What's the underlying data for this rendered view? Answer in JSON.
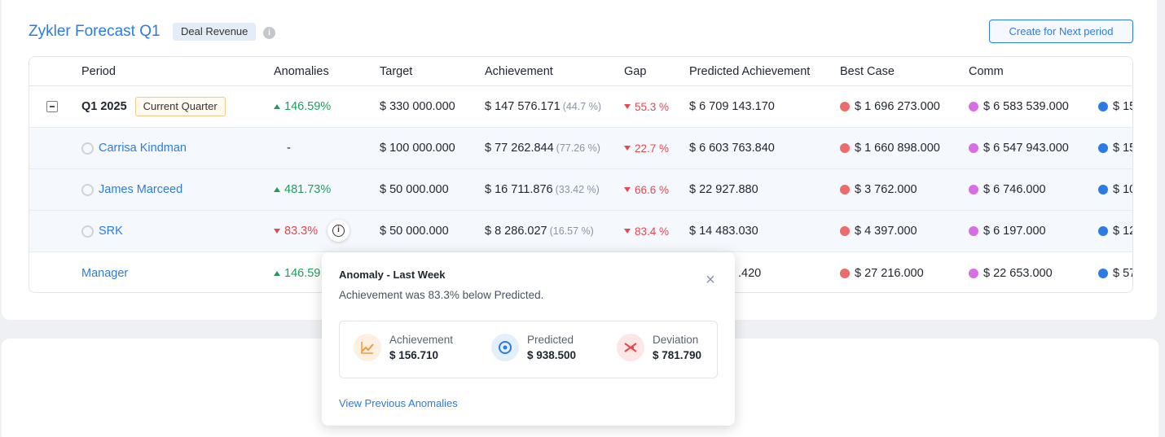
{
  "header": {
    "title": "Zykler Forecast Q1",
    "badge": "Deal Revenue",
    "info_icon": "i",
    "create_button": "Create for Next period"
  },
  "table": {
    "columns": [
      "Period",
      "Anomalies",
      "Target",
      "Achievement",
      "Gap",
      "Predicted Achievement",
      "Best Case",
      "Comm"
    ],
    "rows": [
      {
        "period": "Q1 2025",
        "tag": "Current Quarter",
        "anomaly": "146.59%",
        "anomaly_dir": "up",
        "target": "$ 330 000.000",
        "achievement": "$ 147 576.171",
        "achievement_pct": "(44.7 %)",
        "gap": "55.3 %",
        "predicted": "$ 6 709 143.170",
        "best_case": "$ 1 696 273.000",
        "commit": "$ 6 583 539.000",
        "next": "$ 15"
      },
      {
        "period": "Carrisa Kindman",
        "anomaly": "-",
        "anomaly_dir": "none",
        "target": "$ 100 000.000",
        "achievement": "$ 77 262.844",
        "achievement_pct": "(77.26 %)",
        "gap": "22.7 %",
        "predicted": "$ 6 603 763.840",
        "best_case": "$ 1 660 898.000",
        "commit": "$ 6 547 943.000",
        "next": "$ 15"
      },
      {
        "period": "James Marceed",
        "anomaly": "481.73%",
        "anomaly_dir": "up",
        "target": "$ 50 000.000",
        "achievement": "$ 16 711.876",
        "achievement_pct": "(33.42 %)",
        "gap": "66.6 %",
        "predicted": "$ 22 927.880",
        "best_case": "$ 3 762.000",
        "commit": "$ 6 746.000",
        "next": "$ 10"
      },
      {
        "period": "SRK",
        "anomaly": "83.3%",
        "anomaly_dir": "down",
        "target": "$ 50 000.000",
        "achievement": "$ 8 286.027",
        "achievement_pct": "(16.57 %)",
        "gap": "83.4 %",
        "predicted": "$ 14 483.030",
        "best_case": "$ 4 397.000",
        "commit": "$ 6 197.000",
        "next": "$ 12"
      },
      {
        "period": "Manager",
        "anomaly": "146.59",
        "anomaly_dir": "up",
        "predicted": ".420",
        "best_case": "$ 27 216.000",
        "commit": "$ 22 653.000",
        "next": "$ 57"
      }
    ]
  },
  "popup": {
    "title": "Anomaly - Last Week",
    "description": "Achievement was 83.3% below Predicted.",
    "close": "×",
    "metrics": [
      {
        "label": "Achievement",
        "value": "$ 156.710",
        "icon": "trend-up-icon"
      },
      {
        "label": "Predicted",
        "value": "$ 938.500",
        "icon": "target-icon"
      },
      {
        "label": "Deviation",
        "value": "$ 781.790",
        "icon": "deviation-icon"
      }
    ],
    "link": "View Previous Anomalies"
  },
  "colors": {
    "accent": "#2c7be5",
    "best_case_dot": "#ec6b6b",
    "commit_dot": "#d86ee6",
    "next_dot": "#2c7be5",
    "positive": "#1e9e5a",
    "negative": "#e5484d"
  }
}
